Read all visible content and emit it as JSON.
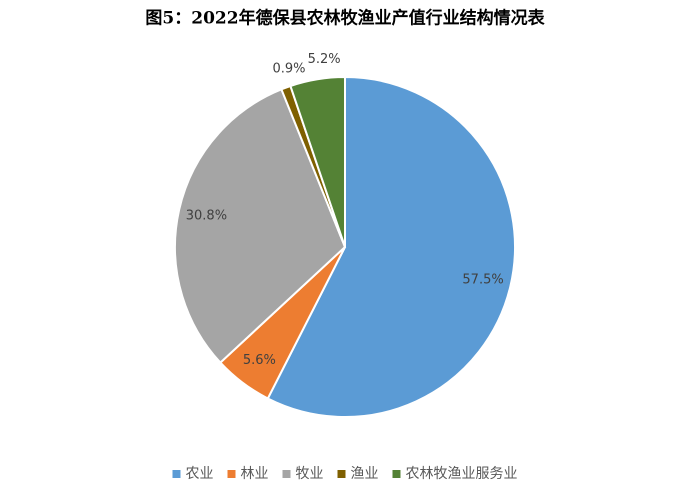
{
  "chart_data": {
    "type": "pie",
    "title": "图5：2022年德保县农林牧渔业产值行业结构情况表",
    "categories": [
      "农业",
      "林业",
      "牧业",
      "渔业",
      "农林牧渔业服务业"
    ],
    "values": [
      57.5,
      5.6,
      30.8,
      0.9,
      5.2
    ],
    "value_labels": [
      "57.5%",
      "5.6%",
      "30.8%",
      "0.9%",
      "5.2%"
    ],
    "colors": [
      "#5b9bd5",
      "#ed7d31",
      "#a5a5a5",
      "#7f6000",
      "#548235"
    ],
    "legend": "bottom"
  }
}
